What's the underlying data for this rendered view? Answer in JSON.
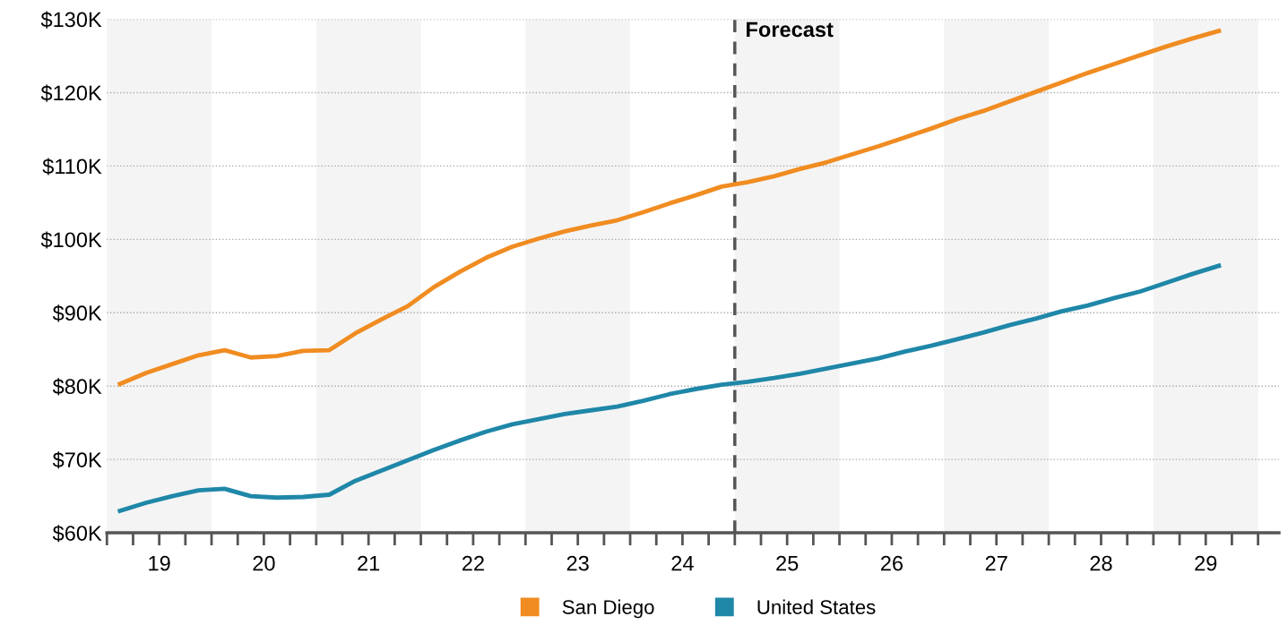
{
  "chart_data": {
    "type": "line",
    "x": [
      19.125,
      19.375,
      19.625,
      19.875,
      20.125,
      20.375,
      20.625,
      20.875,
      21.125,
      21.375,
      21.625,
      21.875,
      22.125,
      22.375,
      22.625,
      22.875,
      23.125,
      23.375,
      23.625,
      23.875,
      24.125,
      24.375,
      24.625,
      24.875,
      25.125,
      25.375,
      25.625,
      25.875,
      26.125,
      26.375,
      26.625,
      26.875,
      27.125,
      27.375,
      27.625,
      27.875,
      28.125,
      28.375,
      28.625,
      28.875,
      29.125,
      29.375,
      29.625
    ],
    "series": [
      {
        "name": "San Diego",
        "color": "#f08c21",
        "values": [
          80.3,
          81.8,
          83.0,
          84.2,
          84.9,
          83.9,
          84.1,
          84.8,
          84.9,
          87.2,
          89.1,
          90.9,
          93.5,
          95.6,
          97.5,
          99.0,
          100.1,
          101.1,
          101.9,
          102.6,
          103.7,
          104.9,
          106.0,
          107.2,
          107.8,
          108.6,
          109.6,
          110.5,
          111.6,
          112.7,
          113.9,
          115.1,
          116.4,
          117.5,
          118.8,
          120.1,
          121.4,
          122.7,
          123.9,
          125.1,
          126.3,
          127.4,
          128.4
        ]
      },
      {
        "name": "United States",
        "color": "#1f87a8",
        "values": [
          63.0,
          64.1,
          65.0,
          65.8,
          66.0,
          65.0,
          64.8,
          64.9,
          65.2,
          67.1,
          68.5,
          69.9,
          71.3,
          72.6,
          73.8,
          74.8,
          75.5,
          76.2,
          76.7,
          77.2,
          78.0,
          78.9,
          79.6,
          80.2,
          80.6,
          81.1,
          81.7,
          82.4,
          83.1,
          83.8,
          84.7,
          85.5,
          86.4,
          87.3,
          88.3,
          89.2,
          90.2,
          91.0,
          92.0,
          92.9,
          94.1,
          95.3,
          96.4
        ]
      }
    ],
    "xlim": [
      19,
      30.2
    ],
    "xticks": [
      {
        "value": 19,
        "label": null
      },
      {
        "value": 19.25,
        "label": null
      },
      {
        "value": 19.5,
        "label": "19"
      },
      {
        "value": 19.75,
        "label": null
      },
      {
        "value": 20,
        "label": null
      },
      {
        "value": 20.25,
        "label": null
      },
      {
        "value": 20.5,
        "label": "20"
      },
      {
        "value": 20.75,
        "label": null
      },
      {
        "value": 21,
        "label": null
      },
      {
        "value": 21.25,
        "label": null
      },
      {
        "value": 21.5,
        "label": "21"
      },
      {
        "value": 21.75,
        "label": null
      },
      {
        "value": 22,
        "label": null
      },
      {
        "value": 22.25,
        "label": null
      },
      {
        "value": 22.5,
        "label": "22"
      },
      {
        "value": 22.75,
        "label": null
      },
      {
        "value": 23,
        "label": null
      },
      {
        "value": 23.25,
        "label": null
      },
      {
        "value": 23.5,
        "label": "23"
      },
      {
        "value": 23.75,
        "label": null
      },
      {
        "value": 24,
        "label": null
      },
      {
        "value": 24.25,
        "label": null
      },
      {
        "value": 24.5,
        "label": "24"
      },
      {
        "value": 24.75,
        "label": null
      },
      {
        "value": 25,
        "label": null
      },
      {
        "value": 25.25,
        "label": null
      },
      {
        "value": 25.5,
        "label": "25"
      },
      {
        "value": 25.75,
        "label": null
      },
      {
        "value": 26,
        "label": null
      },
      {
        "value": 26.25,
        "label": null
      },
      {
        "value": 26.5,
        "label": "26"
      },
      {
        "value": 26.75,
        "label": null
      },
      {
        "value": 27,
        "label": null
      },
      {
        "value": 27.25,
        "label": null
      },
      {
        "value": 27.5,
        "label": "27"
      },
      {
        "value": 27.75,
        "label": null
      },
      {
        "value": 28,
        "label": null
      },
      {
        "value": 28.25,
        "label": null
      },
      {
        "value": 28.5,
        "label": "28"
      },
      {
        "value": 28.75,
        "label": null
      },
      {
        "value": 29,
        "label": null
      },
      {
        "value": 29.25,
        "label": null
      },
      {
        "value": 29.5,
        "label": "29"
      },
      {
        "value": 29.75,
        "label": null
      },
      {
        "value": 30,
        "label": null
      }
    ],
    "ylim": [
      60,
      130
    ],
    "yticks": [
      {
        "value": 60,
        "label": "$60K"
      },
      {
        "value": 70,
        "label": "$70K"
      },
      {
        "value": 80,
        "label": "$80K"
      },
      {
        "value": 90,
        "label": "$90K"
      },
      {
        "value": 100,
        "label": "$100K"
      },
      {
        "value": 110,
        "label": "$110K"
      },
      {
        "value": 120,
        "label": "$120K"
      },
      {
        "value": 130,
        "label": "$130K"
      }
    ],
    "grid": "y",
    "legend": "bottom",
    "marker": "none",
    "line_style": "solid",
    "ref_lines": [
      {
        "axis": "x",
        "value": 25,
        "label": "Forecast",
        "color": "#555555",
        "line_style": "dashed"
      }
    ],
    "bands": [
      {
        "axis": "x",
        "from": 19,
        "to": 20,
        "color": "#f4f4f4"
      },
      {
        "axis": "x",
        "from": 21,
        "to": 22,
        "color": "#f4f4f4"
      },
      {
        "axis": "x",
        "from": 23,
        "to": 24,
        "color": "#f4f4f4"
      },
      {
        "axis": "x",
        "from": 25,
        "to": 26,
        "color": "#f4f4f4"
      },
      {
        "axis": "x",
        "from": 27,
        "to": 28,
        "color": "#f4f4f4"
      },
      {
        "axis": "x",
        "from": 29,
        "to": 30,
        "color": "#f4f4f4"
      }
    ]
  }
}
